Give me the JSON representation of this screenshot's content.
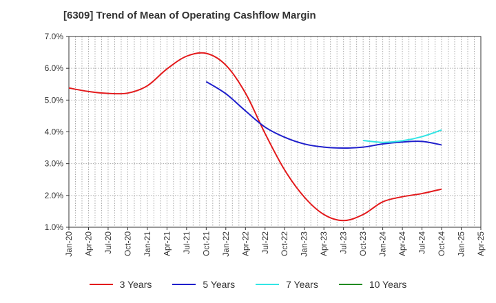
{
  "chart_data": {
    "type": "line",
    "title": "[6309]  Trend of Mean of Operating Cashflow Margin",
    "xlabel": "",
    "ylabel": "",
    "x_ticks": [
      "Jan-20",
      "Apr-20",
      "Jul-20",
      "Oct-20",
      "Jan-21",
      "Apr-21",
      "Jul-21",
      "Oct-21",
      "Jan-22",
      "Apr-22",
      "Jul-22",
      "Oct-22",
      "Jan-23",
      "Apr-23",
      "Jul-23",
      "Oct-23",
      "Jan-24",
      "Apr-24",
      "Jul-24",
      "Oct-24",
      "Jan-25",
      "Apr-25"
    ],
    "y_ticks": [
      "1.0%",
      "2.0%",
      "3.0%",
      "4.0%",
      "5.0%",
      "6.0%",
      "7.0%"
    ],
    "ylim": [
      1.0,
      7.0
    ],
    "y_unit": "%",
    "grid": true,
    "legend_position": "bottom",
    "series": [
      {
        "name": "3 Years",
        "color": "#e31a1c",
        "x": [
          "Jan-20",
          "Apr-20",
          "Jul-20",
          "Oct-20",
          "Jan-21",
          "Apr-21",
          "Jul-21",
          "Oct-21",
          "Jan-22",
          "Apr-22",
          "Jul-22",
          "Oct-22",
          "Jan-23",
          "Apr-23",
          "Jul-23",
          "Oct-23",
          "Jan-24",
          "Apr-24",
          "Jul-24",
          "Oct-24"
        ],
        "values": [
          5.38,
          5.27,
          5.21,
          5.22,
          5.45,
          5.98,
          6.38,
          6.47,
          6.1,
          5.22,
          3.95,
          2.8,
          1.95,
          1.4,
          1.21,
          1.4,
          1.8,
          1.96,
          2.06,
          2.2
        ]
      },
      {
        "name": "5 Years",
        "color": "#1f1fcc",
        "x": [
          "Oct-21",
          "Jan-22",
          "Apr-22",
          "Jul-22",
          "Oct-22",
          "Jan-23",
          "Apr-23",
          "Jul-23",
          "Oct-23",
          "Jan-24",
          "Apr-24",
          "Jul-24",
          "Oct-24"
        ],
        "values": [
          5.58,
          5.2,
          4.66,
          4.15,
          3.83,
          3.62,
          3.52,
          3.49,
          3.52,
          3.62,
          3.68,
          3.7,
          3.59
        ]
      },
      {
        "name": "7 Years",
        "color": "#33e5e5",
        "x": [
          "Oct-23",
          "Jan-24",
          "Apr-24",
          "Jul-24",
          "Oct-24"
        ],
        "values": [
          3.73,
          3.67,
          3.72,
          3.85,
          4.06
        ]
      },
      {
        "name": "10 Years",
        "color": "#228b22",
        "x": [],
        "values": []
      }
    ]
  }
}
